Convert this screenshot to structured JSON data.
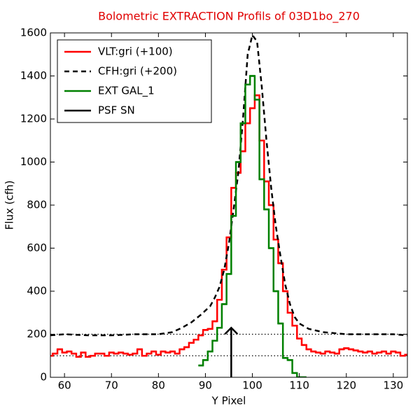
{
  "chart_data": {
    "type": "line",
    "title": "Bolometric EXTRACTION Profils of 03D1bo_270",
    "xlabel": "Y Pixel",
    "ylabel": "Flux (cfh)",
    "xlim": [
      57,
      133
    ],
    "ylim": [
      0,
      1600
    ],
    "xticks": [
      60,
      70,
      80,
      90,
      100,
      110,
      120,
      130
    ],
    "yticks": [
      0,
      200,
      400,
      600,
      800,
      1000,
      1200,
      1400,
      1600
    ],
    "legend": "upper left",
    "hlines": [
      100,
      200
    ],
    "series": [
      {
        "name": "VLT:gri (+100)",
        "color": "#ff0000",
        "style": "step",
        "x": [
          57,
          58,
          59,
          60,
          61,
          62,
          63,
          64,
          65,
          66,
          67,
          68,
          69,
          70,
          71,
          72,
          73,
          74,
          75,
          76,
          77,
          78,
          79,
          80,
          81,
          82,
          83,
          84,
          85,
          86,
          87,
          88,
          89,
          90,
          91,
          92,
          93,
          94,
          95,
          96,
          97,
          98,
          99,
          100,
          101,
          102,
          103,
          104,
          105,
          106,
          107,
          108,
          109,
          110,
          111,
          112,
          113,
          114,
          115,
          116,
          117,
          118,
          119,
          120,
          121,
          122,
          123,
          124,
          125,
          126,
          127,
          128,
          129,
          130,
          131,
          132,
          133
        ],
        "values": [
          100,
          110,
          130,
          115,
          120,
          110,
          95,
          115,
          95,
          100,
          110,
          110,
          100,
          115,
          110,
          115,
          110,
          105,
          110,
          130,
          100,
          110,
          120,
          105,
          120,
          115,
          120,
          110,
          130,
          140,
          160,
          175,
          195,
          220,
          225,
          260,
          360,
          500,
          650,
          880,
          950,
          1050,
          1180,
          1250,
          1310,
          1100,
          910,
          800,
          640,
          530,
          400,
          300,
          240,
          180,
          150,
          130,
          120,
          115,
          110,
          120,
          115,
          110,
          130,
          135,
          130,
          125,
          120,
          115,
          120,
          110,
          115,
          120,
          110,
          120,
          115,
          100,
          105
        ]
      },
      {
        "name": "CFH:gri (+200)",
        "color": "#000000",
        "style": "dashed",
        "x": [
          57,
          60,
          65,
          70,
          75,
          80,
          83,
          85,
          87,
          89,
          91,
          92,
          93,
          94,
          95,
          96,
          97,
          98,
          99,
          100,
          101,
          102,
          103,
          104,
          105,
          106,
          107,
          108,
          109,
          110,
          112,
          115,
          120,
          125,
          130,
          133
        ],
        "values": [
          195,
          200,
          195,
          195,
          200,
          200,
          210,
          230,
          255,
          290,
          330,
          370,
          420,
          500,
          620,
          780,
          950,
          1200,
          1500,
          1590,
          1560,
          1350,
          1100,
          880,
          700,
          560,
          430,
          340,
          280,
          250,
          225,
          210,
          200,
          200,
          200,
          195
        ]
      },
      {
        "name": "EXT GAL_1",
        "color": "#008000",
        "style": "step",
        "x": [
          89,
          90,
          91,
          92,
          93,
          94,
          95,
          96,
          97,
          98,
          99,
          100,
          101,
          102,
          103,
          104,
          105,
          106,
          107,
          108,
          109,
          110,
          111
        ],
        "values": [
          55,
          80,
          120,
          170,
          230,
          340,
          480,
          750,
          1000,
          1180,
          1360,
          1400,
          1290,
          920,
          780,
          600,
          400,
          250,
          90,
          80,
          20,
          0,
          0
        ]
      },
      {
        "name": "PSF SN",
        "color": "#000000",
        "style": "arrow",
        "x": [
          95.5
        ],
        "values": [
          230
        ]
      }
    ]
  }
}
